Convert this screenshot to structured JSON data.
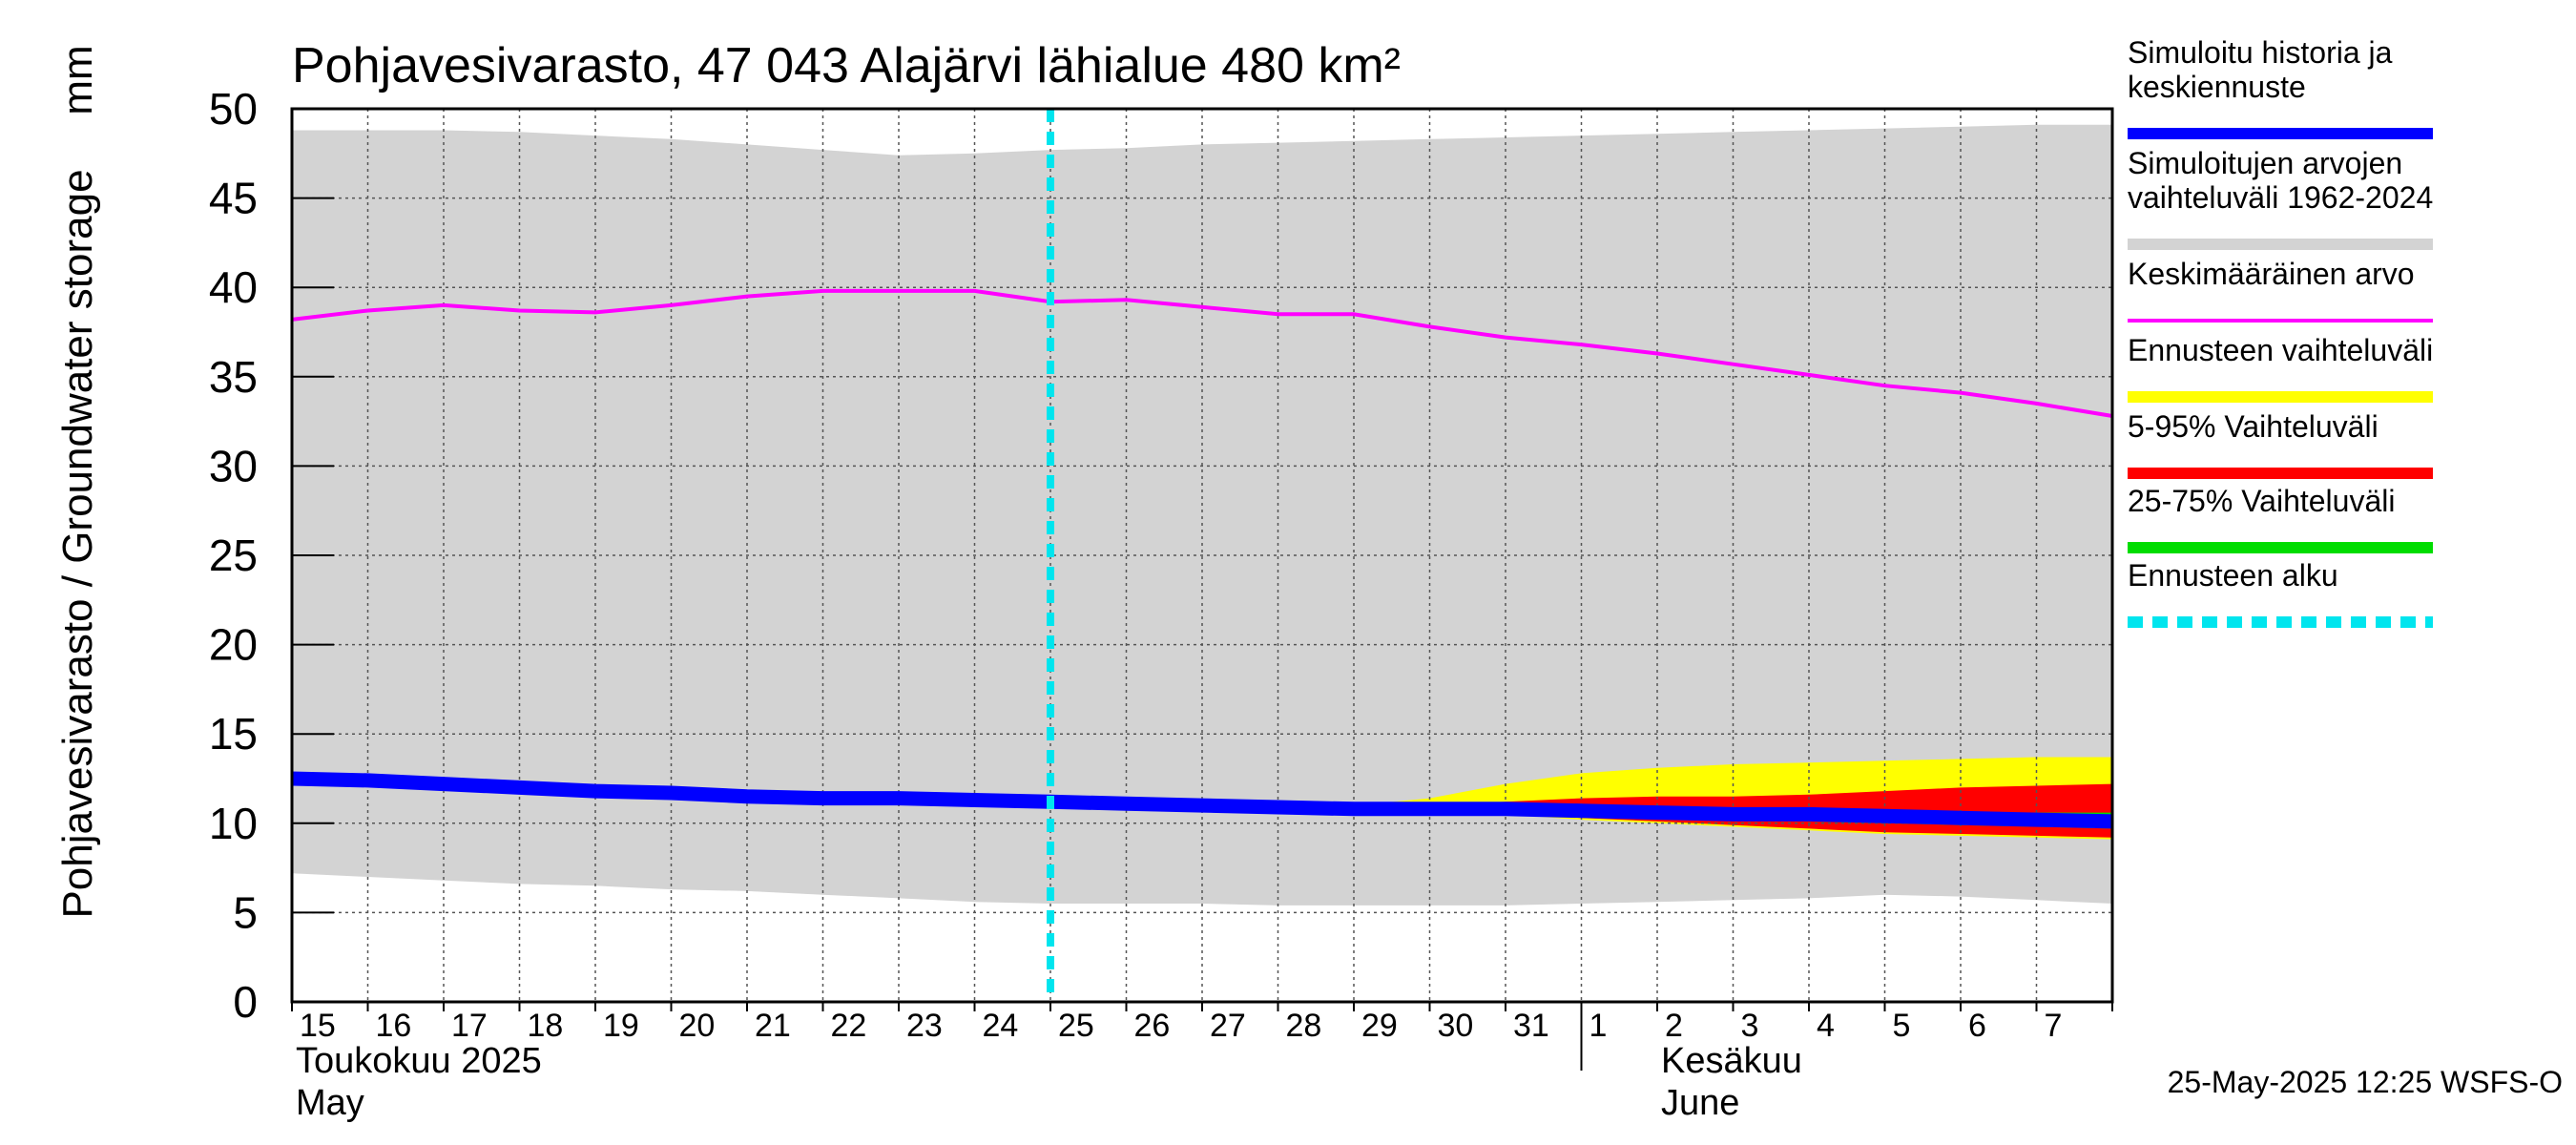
{
  "chart_data": {
    "type": "area",
    "title": "Pohjavesivarasto, 47 043 Alajärvi lähialue 480 km²",
    "ylabel": "Pohjavesivarasto / Groundwater storage",
    "yunit": "mm",
    "ylim": [
      0,
      50
    ],
    "yticks": [
      0,
      5,
      10,
      15,
      20,
      25,
      30,
      35,
      40,
      45,
      50
    ],
    "xlim": [
      0,
      24
    ],
    "grid": true,
    "day_labels": [
      "15",
      "16",
      "17",
      "18",
      "19",
      "20",
      "21",
      "22",
      "23",
      "24",
      "25",
      "26",
      "27",
      "28",
      "29",
      "30",
      "31",
      "1",
      "2",
      "3",
      "4",
      "5",
      "6",
      "7"
    ],
    "month_labels": [
      {
        "fi": "Toukokuu  2025",
        "en": "May",
        "x": 0
      },
      {
        "fi": "Kesäkuu",
        "en": "June",
        "x": 18
      }
    ],
    "month_boundary_x": 17,
    "forecast_start_x": 10,
    "x": [
      0,
      1,
      2,
      3,
      4,
      5,
      6,
      7,
      8,
      9,
      10,
      11,
      12,
      13,
      14,
      15,
      16,
      17,
      18,
      19,
      20,
      21,
      22,
      23,
      24
    ],
    "series": [
      {
        "name": "Simuloitujen arvojen vaihteluväli 1962-2024",
        "kind": "band",
        "color": "#d3d3d3",
        "upper": [
          48.8,
          48.8,
          48.8,
          48.7,
          48.5,
          48.3,
          48.0,
          47.7,
          47.4,
          47.5,
          47.7,
          47.8,
          48.0,
          48.1,
          48.2,
          48.3,
          48.4,
          48.5,
          48.6,
          48.7,
          48.8,
          48.9,
          49.0,
          49.1,
          49.1
        ],
        "lower": [
          7.2,
          7.0,
          6.8,
          6.6,
          6.5,
          6.3,
          6.2,
          6.0,
          5.8,
          5.6,
          5.5,
          5.5,
          5.5,
          5.4,
          5.4,
          5.4,
          5.4,
          5.5,
          5.6,
          5.7,
          5.8,
          6.0,
          5.9,
          5.7,
          5.5
        ]
      },
      {
        "name": "Keskimääräinen arvo",
        "kind": "line",
        "color": "#ff00ff",
        "values": [
          38.2,
          38.7,
          39.0,
          38.7,
          38.6,
          39.0,
          39.5,
          39.8,
          39.8,
          39.8,
          39.2,
          39.3,
          38.9,
          38.5,
          38.5,
          37.8,
          37.2,
          36.8,
          36.3,
          35.7,
          35.1,
          34.5,
          34.1,
          33.5,
          32.8
        ]
      },
      {
        "name": "Ennusteen vaihteluväli",
        "kind": "band",
        "color": "#ffff00",
        "upper": [
          null,
          null,
          null,
          null,
          null,
          null,
          null,
          null,
          null,
          null,
          11.2,
          11.1,
          11.0,
          10.9,
          11.0,
          11.4,
          12.2,
          12.8,
          13.1,
          13.3,
          13.4,
          13.5,
          13.6,
          13.7,
          13.7
        ],
        "lower": [
          null,
          null,
          null,
          null,
          null,
          null,
          null,
          null,
          null,
          null,
          11.2,
          11.0,
          10.9,
          10.8,
          10.7,
          10.6,
          10.5,
          10.2,
          10.0,
          9.8,
          9.6,
          9.4,
          9.3,
          9.2,
          9.1
        ]
      },
      {
        "name": "5-95% Vaihteluväli",
        "kind": "band",
        "color": "#ff0000",
        "upper": [
          null,
          null,
          null,
          null,
          null,
          null,
          null,
          null,
          null,
          null,
          11.2,
          11.1,
          11.0,
          10.9,
          10.9,
          11.0,
          11.2,
          11.4,
          11.5,
          11.5,
          11.6,
          11.8,
          12.0,
          12.1,
          12.2
        ],
        "lower": [
          null,
          null,
          null,
          null,
          null,
          null,
          null,
          null,
          null,
          null,
          11.2,
          11.0,
          10.9,
          10.8,
          10.7,
          10.6,
          10.5,
          10.3,
          10.1,
          9.9,
          9.7,
          9.5,
          9.4,
          9.3,
          9.2
        ]
      },
      {
        "name": "25-75% Vaihteluväli",
        "kind": "band",
        "color": "#00dd00",
        "upper": [
          null,
          null,
          null,
          null,
          null,
          null,
          null,
          null,
          null,
          null,
          11.2,
          11.1,
          11.0,
          10.9,
          10.8,
          10.8,
          10.8,
          10.8,
          10.8,
          10.7,
          10.7,
          10.7,
          10.6,
          10.6,
          10.6
        ],
        "lower": [
          null,
          null,
          null,
          null,
          null,
          null,
          null,
          null,
          null,
          null,
          11.2,
          11.0,
          10.9,
          10.8,
          10.7,
          10.6,
          10.5,
          10.4,
          10.3,
          10.2,
          10.1,
          10.0,
          9.9,
          9.8,
          9.7
        ]
      },
      {
        "name": "Simuloitu historia ja keskiennuste",
        "kind": "line",
        "color": "#0000ff",
        "values": [
          12.5,
          12.4,
          12.2,
          12.0,
          11.8,
          11.7,
          11.5,
          11.4,
          11.4,
          11.3,
          11.2,
          11.1,
          11.0,
          10.9,
          10.8,
          10.8,
          10.8,
          10.7,
          10.6,
          10.5,
          10.5,
          10.4,
          10.3,
          10.2,
          10.1
        ]
      }
    ]
  },
  "legend": [
    {
      "label": "Simuloitu historia ja keskiennuste",
      "color": "#0000ff",
      "style": "solid",
      "weight": "thick"
    },
    {
      "label": "Simuloitujen arvojen vaihteluväli 1962-2024",
      "color": "#d3d3d3",
      "style": "solid",
      "weight": "thick"
    },
    {
      "label": "Keskimääräinen arvo",
      "color": "#ff00ff",
      "style": "solid",
      "weight": "thin"
    },
    {
      "label": "Ennusteen vaihteluväli",
      "color": "#ffff00",
      "style": "solid",
      "weight": "thick"
    },
    {
      "label": "5-95% Vaihteluväli",
      "color": "#ff0000",
      "style": "solid",
      "weight": "thick"
    },
    {
      "label": "25-75% Vaihteluväli",
      "color": "#00dd00",
      "style": "solid",
      "weight": "thick"
    },
    {
      "label": "Ennusteen alku",
      "color": "#00e5ee",
      "style": "dashed",
      "weight": "thick"
    }
  ],
  "timestamp": "25-May-2025 12:25 WSFS-O"
}
